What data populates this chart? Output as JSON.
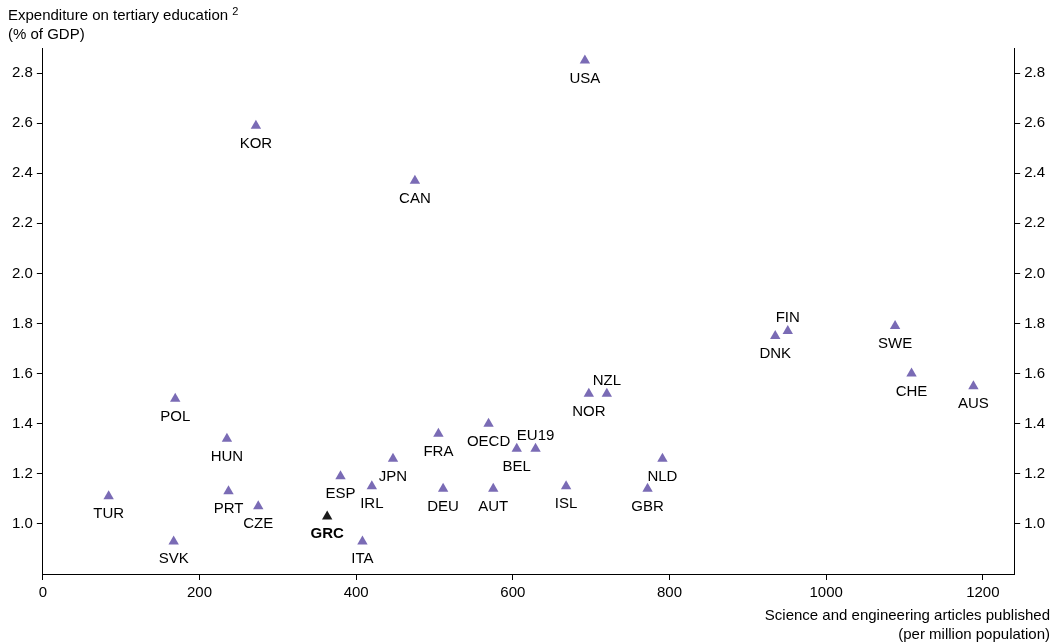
{
  "chart_data": {
    "type": "scatter",
    "marker": "triangle",
    "grid": false,
    "legend": false,
    "xlabel": "Science and engineering articles published\n(per million population)",
    "ylabel": "Expenditure on tertiary education $^{2}$\n(% of GDP)",
    "xlim": [
      0,
      1240
    ],
    "xticks": [
      0,
      200,
      400,
      600,
      800,
      1000,
      1200
    ],
    "ylim": [
      0.8,
      2.9
    ],
    "yticks": [
      {
        "value": 1,
        "label": "1.0"
      },
      1.2,
      1.4,
      1.6,
      1.8,
      {
        "value": 2,
        "label": "2.0"
      },
      2.2,
      2.4,
      2.6,
      2.8
    ],
    "y2lim": [
      0.8,
      2.9
    ],
    "y2ticks": [
      {
        "value": 1,
        "label": "1.0"
      },
      1.2,
      1.4,
      1.6,
      1.8,
      {
        "value": 2,
        "label": "2.0"
      },
      2.2,
      2.4,
      2.6,
      2.8
    ],
    "series": [
      {
        "color": "#7a6bb5",
        "x": [
          692,
          272,
          475,
          935,
          951,
          1088,
          1109,
          1188,
          697,
          720,
          169,
          569,
          505,
          235,
          605,
          629,
          791,
          447,
          380,
          420,
          668,
          511,
          575,
          772,
          237,
          84,
          275,
          167,
          408
        ],
        "values": [
          2.85,
          2.59,
          2.37,
          1.75,
          1.77,
          1.79,
          1.6,
          1.55,
          1.52,
          1.52,
          1.5,
          1.4,
          1.36,
          1.34,
          1.3,
          1.3,
          1.26,
          1.26,
          1.19,
          1.15,
          1.15,
          1.14,
          1.14,
          1.14,
          1.13,
          1.11,
          1.07,
          0.93,
          0.93
        ]
      },
      {
        "color": "#1a1a1a",
        "x": [
          363
        ],
        "values": [
          1.03
        ]
      }
    ],
    "annotations": [
      {
        "text": "USA",
        "x": 692,
        "y": 2.85
      },
      {
        "text": "KOR",
        "x": 272,
        "y": 2.59
      },
      {
        "text": "CAN",
        "x": 475,
        "y": 2.37
      },
      {
        "text": "DNK",
        "x": 935,
        "y": 1.75
      },
      {
        "text": "FIN",
        "x": 951,
        "y": 1.77
      },
      {
        "text": "SWE",
        "x": 1088,
        "y": 1.79
      },
      {
        "text": "CHE",
        "x": 1109,
        "y": 1.6
      },
      {
        "text": "AUS",
        "x": 1188,
        "y": 1.55
      },
      {
        "text": "NOR",
        "x": 697,
        "y": 1.52
      },
      {
        "text": "NZL",
        "x": 720,
        "y": 1.52
      },
      {
        "text": "POL",
        "x": 169,
        "y": 1.5
      },
      {
        "text": "OECD",
        "x": 569,
        "y": 1.4
      },
      {
        "text": "FRA",
        "x": 505,
        "y": 1.36
      },
      {
        "text": "HUN",
        "x": 235,
        "y": 1.34
      },
      {
        "text": "BEL",
        "x": 605,
        "y": 1.3
      },
      {
        "text": "EU19",
        "x": 629,
        "y": 1.3
      },
      {
        "text": "NLD",
        "x": 791,
        "y": 1.26
      },
      {
        "text": "JPN",
        "x": 447,
        "y": 1.26
      },
      {
        "text": "ESP",
        "x": 380,
        "y": 1.19
      },
      {
        "text": "IRL",
        "x": 420,
        "y": 1.15
      },
      {
        "text": "ISL",
        "x": 668,
        "y": 1.15
      },
      {
        "text": "DEU",
        "x": 511,
        "y": 1.14
      },
      {
        "text": "AUT",
        "x": 575,
        "y": 1.14
      },
      {
        "text": "GBR",
        "x": 772,
        "y": 1.14
      },
      {
        "text": "PRT",
        "x": 237,
        "y": 1.13
      },
      {
        "text": "TUR",
        "x": 84,
        "y": 1.11
      },
      {
        "text": "CZE",
        "x": 275,
        "y": 1.07
      },
      {
        "text": "SVK",
        "x": 167,
        "y": 0.93
      },
      {
        "text": "ITA",
        "x": 408,
        "y": 0.93
      },
      {
        "text": "GRC",
        "x": 363,
        "y": 1.03
      }
    ]
  }
}
